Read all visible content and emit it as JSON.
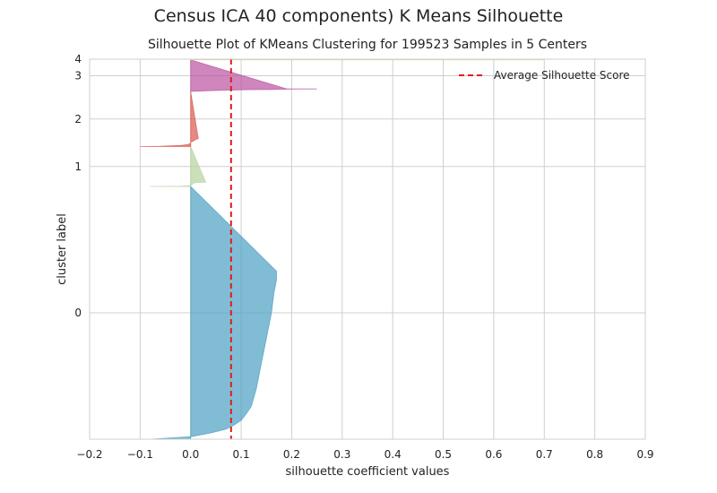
{
  "figure": {
    "suptitle": "Census ICA 40 components) K Means Silhouette"
  },
  "chart_data": {
    "type": "area",
    "title": "Silhouette Plot of KMeans Clustering for 199523 Samples in 5 Centers",
    "xlabel": "silhouette coefficient values",
    "ylabel": "cluster label",
    "xlim": [
      -0.2,
      0.9
    ],
    "x_ticks": [
      "−0.2",
      "−0.1",
      "0.0",
      "0.1",
      "0.2",
      "0.3",
      "0.4",
      "0.5",
      "0.6",
      "0.7",
      "0.8",
      "0.9"
    ],
    "y_ticks": [
      "0",
      "1",
      "2",
      "3",
      "4"
    ],
    "grid": true,
    "average_silhouette_score": 0.08,
    "legend": {
      "entries": [
        "Average Silhouette Score"
      ],
      "placement": "top-right"
    },
    "clusters": [
      {
        "label": "0",
        "color": "#4c9fc3",
        "y_start": 0,
        "y_end": 0.665,
        "profile": [
          [
            0.0,
            -0.08
          ],
          [
            0.01,
            0.0
          ],
          [
            0.025,
            0.04
          ],
          [
            0.04,
            0.07
          ],
          [
            0.055,
            0.085
          ],
          [
            0.075,
            0.1
          ],
          [
            0.1,
            0.11
          ],
          [
            0.13,
            0.12
          ],
          [
            0.2,
            0.13
          ],
          [
            0.3,
            0.14
          ],
          [
            0.4,
            0.15
          ],
          [
            0.5,
            0.16
          ],
          [
            0.58,
            0.165
          ],
          [
            0.63,
            0.17
          ],
          [
            0.665,
            0.17
          ]
        ]
      },
      {
        "label": "1",
        "color": "#b5d39c",
        "y_start": 0.665,
        "y_end": 0.77,
        "profile": [
          [
            0.0,
            -0.08
          ],
          [
            0.005,
            -0.02
          ],
          [
            0.015,
            -0.005
          ],
          [
            0.03,
            0.0
          ],
          [
            0.05,
            0.003
          ],
          [
            0.08,
            0.005
          ],
          [
            0.1,
            0.01
          ],
          [
            0.105,
            0.03
          ]
        ]
      },
      {
        "label": "2",
        "color": "#d9574f",
        "y_start": 0.77,
        "y_end": 0.915,
        "profile": [
          [
            0.0,
            -0.1
          ],
          [
            0.005,
            -0.06
          ],
          [
            0.02,
            -0.02
          ],
          [
            0.04,
            -0.005
          ],
          [
            0.06,
            0.0
          ],
          [
            0.08,
            0.0
          ],
          [
            0.1,
            0.005
          ],
          [
            0.13,
            0.01
          ],
          [
            0.145,
            0.015
          ]
        ]
      },
      {
        "label": "3",
        "color": "#b9529f",
        "y_start": 0.915,
        "y_end": 0.998,
        "profile": [
          [
            0.0,
            0.0
          ],
          [
            0.02,
            0.03
          ],
          [
            0.04,
            0.07
          ],
          [
            0.055,
            0.11
          ],
          [
            0.065,
            0.16
          ],
          [
            0.075,
            0.2
          ],
          [
            0.08,
            0.25
          ],
          [
            0.083,
            0.19
          ]
        ]
      },
      {
        "label": "4",
        "color": "#d8d8a0",
        "y_start": 0.998,
        "y_end": 1.0,
        "profile": [
          [
            0.0,
            0.7
          ],
          [
            0.002,
            0.7
          ]
        ]
      }
    ]
  }
}
